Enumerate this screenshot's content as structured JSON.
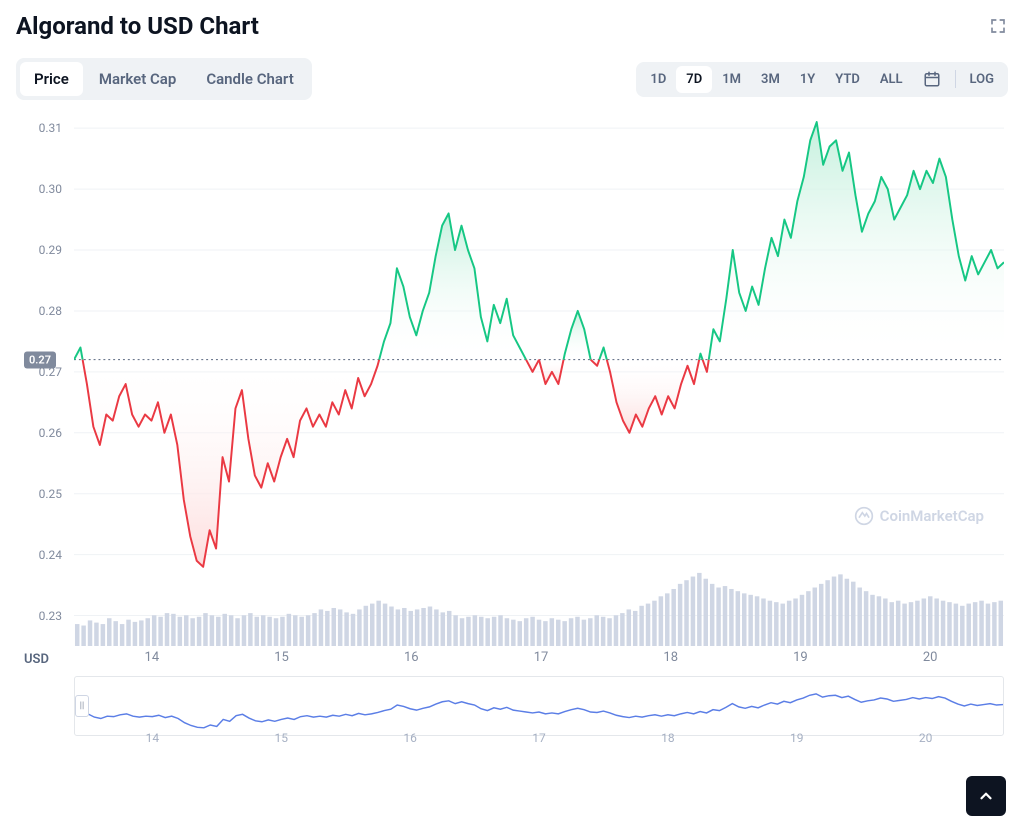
{
  "title": "Algorand to USD Chart",
  "currency_label": "USD",
  "watermark_text": "CoinMarketCap",
  "view_tabs": {
    "items": [
      "Price",
      "Market Cap",
      "Candle Chart"
    ],
    "active_index": 0
  },
  "range_tabs": {
    "items": [
      "1D",
      "7D",
      "1M",
      "3M",
      "1Y",
      "YTD",
      "ALL"
    ],
    "active_index": 1,
    "log_label": "LOG"
  },
  "chart": {
    "type": "line-area-baseline",
    "ylim": [
      0.225,
      0.312
    ],
    "yticks": [
      0.23,
      0.24,
      0.25,
      0.26,
      0.27,
      0.28,
      0.29,
      0.3,
      0.31
    ],
    "ytick_labels": [
      "0.23",
      "0.24",
      "0.25",
      "0.26",
      "0.27",
      "0.28",
      "0.29",
      "0.30",
      "0.31"
    ],
    "baseline": 0.272,
    "baseline_label": "0.27",
    "xlim": [
      13.4,
      20.6
    ],
    "xticks": [
      14,
      15,
      16,
      17,
      18,
      19,
      20
    ],
    "xtick_labels": [
      "14",
      "15",
      "16",
      "17",
      "18",
      "19",
      "20"
    ],
    "background_color": "#ffffff",
    "grid_color": "#eff2f5",
    "baseline_dot_color": "#58667e",
    "up_color": "#16c784",
    "up_fill_from": "#c4f0dd",
    "up_fill_to": "#ffffff",
    "down_color": "#ea3943",
    "down_fill_from": "#fddcdc",
    "down_fill_to": "#ffffff",
    "line_width": 2,
    "series": [
      [
        13.4,
        0.272
      ],
      [
        13.45,
        0.274
      ],
      [
        13.5,
        0.268
      ],
      [
        13.55,
        0.261
      ],
      [
        13.6,
        0.258
      ],
      [
        13.65,
        0.263
      ],
      [
        13.7,
        0.262
      ],
      [
        13.75,
        0.266
      ],
      [
        13.8,
        0.268
      ],
      [
        13.85,
        0.263
      ],
      [
        13.9,
        0.261
      ],
      [
        13.95,
        0.263
      ],
      [
        14.0,
        0.262
      ],
      [
        14.05,
        0.265
      ],
      [
        14.1,
        0.26
      ],
      [
        14.15,
        0.263
      ],
      [
        14.2,
        0.258
      ],
      [
        14.25,
        0.249
      ],
      [
        14.3,
        0.243
      ],
      [
        14.35,
        0.239
      ],
      [
        14.4,
        0.238
      ],
      [
        14.45,
        0.244
      ],
      [
        14.5,
        0.241
      ],
      [
        14.55,
        0.256
      ],
      [
        14.6,
        0.252
      ],
      [
        14.65,
        0.264
      ],
      [
        14.7,
        0.267
      ],
      [
        14.75,
        0.259
      ],
      [
        14.8,
        0.253
      ],
      [
        14.85,
        0.251
      ],
      [
        14.9,
        0.255
      ],
      [
        14.95,
        0.252
      ],
      [
        15.0,
        0.256
      ],
      [
        15.05,
        0.259
      ],
      [
        15.1,
        0.256
      ],
      [
        15.15,
        0.262
      ],
      [
        15.2,
        0.264
      ],
      [
        15.25,
        0.261
      ],
      [
        15.3,
        0.263
      ],
      [
        15.35,
        0.261
      ],
      [
        15.4,
        0.265
      ],
      [
        15.45,
        0.263
      ],
      [
        15.5,
        0.267
      ],
      [
        15.55,
        0.264
      ],
      [
        15.6,
        0.269
      ],
      [
        15.65,
        0.266
      ],
      [
        15.7,
        0.268
      ],
      [
        15.75,
        0.271
      ],
      [
        15.8,
        0.275
      ],
      [
        15.85,
        0.278
      ],
      [
        15.9,
        0.287
      ],
      [
        15.95,
        0.284
      ],
      [
        16.0,
        0.279
      ],
      [
        16.05,
        0.276
      ],
      [
        16.1,
        0.28
      ],
      [
        16.15,
        0.283
      ],
      [
        16.2,
        0.289
      ],
      [
        16.25,
        0.294
      ],
      [
        16.3,
        0.296
      ],
      [
        16.35,
        0.29
      ],
      [
        16.4,
        0.294
      ],
      [
        16.45,
        0.29
      ],
      [
        16.5,
        0.287
      ],
      [
        16.55,
        0.279
      ],
      [
        16.6,
        0.275
      ],
      [
        16.65,
        0.281
      ],
      [
        16.7,
        0.278
      ],
      [
        16.75,
        0.282
      ],
      [
        16.8,
        0.276
      ],
      [
        16.85,
        0.274
      ],
      [
        16.9,
        0.272
      ],
      [
        16.95,
        0.27
      ],
      [
        17.0,
        0.272
      ],
      [
        17.05,
        0.268
      ],
      [
        17.1,
        0.27
      ],
      [
        17.15,
        0.268
      ],
      [
        17.2,
        0.273
      ],
      [
        17.25,
        0.277
      ],
      [
        17.3,
        0.28
      ],
      [
        17.35,
        0.277
      ],
      [
        17.4,
        0.272
      ],
      [
        17.45,
        0.271
      ],
      [
        17.5,
        0.274
      ],
      [
        17.55,
        0.27
      ],
      [
        17.6,
        0.265
      ],
      [
        17.65,
        0.262
      ],
      [
        17.7,
        0.26
      ],
      [
        17.75,
        0.263
      ],
      [
        17.8,
        0.261
      ],
      [
        17.85,
        0.264
      ],
      [
        17.9,
        0.266
      ],
      [
        17.95,
        0.263
      ],
      [
        18.0,
        0.266
      ],
      [
        18.05,
        0.264
      ],
      [
        18.1,
        0.268
      ],
      [
        18.15,
        0.271
      ],
      [
        18.2,
        0.268
      ],
      [
        18.25,
        0.273
      ],
      [
        18.3,
        0.27
      ],
      [
        18.35,
        0.277
      ],
      [
        18.4,
        0.275
      ],
      [
        18.45,
        0.282
      ],
      [
        18.5,
        0.29
      ],
      [
        18.55,
        0.283
      ],
      [
        18.6,
        0.28
      ],
      [
        18.65,
        0.284
      ],
      [
        18.7,
        0.281
      ],
      [
        18.75,
        0.287
      ],
      [
        18.8,
        0.292
      ],
      [
        18.85,
        0.289
      ],
      [
        18.9,
        0.295
      ],
      [
        18.95,
        0.292
      ],
      [
        19.0,
        0.298
      ],
      [
        19.05,
        0.302
      ],
      [
        19.1,
        0.308
      ],
      [
        19.15,
        0.311
      ],
      [
        19.2,
        0.304
      ],
      [
        19.25,
        0.307
      ],
      [
        19.3,
        0.308
      ],
      [
        19.35,
        0.303
      ],
      [
        19.4,
        0.306
      ],
      [
        19.45,
        0.299
      ],
      [
        19.5,
        0.293
      ],
      [
        19.55,
        0.296
      ],
      [
        19.6,
        0.298
      ],
      [
        19.65,
        0.302
      ],
      [
        19.7,
        0.3
      ],
      [
        19.75,
        0.295
      ],
      [
        19.8,
        0.297
      ],
      [
        19.85,
        0.299
      ],
      [
        19.9,
        0.303
      ],
      [
        19.95,
        0.3
      ],
      [
        20.0,
        0.303
      ],
      [
        20.05,
        0.301
      ],
      [
        20.1,
        0.305
      ],
      [
        20.15,
        0.302
      ],
      [
        20.2,
        0.295
      ],
      [
        20.25,
        0.289
      ],
      [
        20.3,
        0.285
      ],
      [
        20.35,
        0.289
      ],
      [
        20.4,
        0.286
      ],
      [
        20.45,
        0.288
      ],
      [
        20.5,
        0.29
      ],
      [
        20.55,
        0.287
      ],
      [
        20.6,
        0.288
      ]
    ],
    "volume": {
      "color": "#cfd6e4",
      "y_base": 0.225,
      "y_max_height": 0.012,
      "data": [
        0.3,
        0.28,
        0.35,
        0.32,
        0.3,
        0.38,
        0.34,
        0.3,
        0.36,
        0.33,
        0.35,
        0.38,
        0.42,
        0.4,
        0.45,
        0.44,
        0.4,
        0.42,
        0.38,
        0.4,
        0.45,
        0.42,
        0.4,
        0.44,
        0.42,
        0.38,
        0.42,
        0.45,
        0.4,
        0.42,
        0.4,
        0.38,
        0.4,
        0.44,
        0.42,
        0.4,
        0.42,
        0.45,
        0.5,
        0.48,
        0.52,
        0.5,
        0.46,
        0.44,
        0.5,
        0.55,
        0.58,
        0.62,
        0.58,
        0.54,
        0.5,
        0.52,
        0.48,
        0.5,
        0.52,
        0.54,
        0.5,
        0.46,
        0.48,
        0.42,
        0.38,
        0.4,
        0.42,
        0.4,
        0.38,
        0.4,
        0.42,
        0.38,
        0.36,
        0.34,
        0.38,
        0.4,
        0.36,
        0.34,
        0.38,
        0.36,
        0.34,
        0.38,
        0.4,
        0.36,
        0.38,
        0.42,
        0.4,
        0.38,
        0.42,
        0.45,
        0.5,
        0.48,
        0.55,
        0.58,
        0.62,
        0.68,
        0.72,
        0.78,
        0.85,
        0.9,
        0.95,
        1.0,
        0.92,
        0.85,
        0.8,
        0.82,
        0.78,
        0.75,
        0.72,
        0.7,
        0.68,
        0.65,
        0.62,
        0.6,
        0.58,
        0.62,
        0.65,
        0.7,
        0.75,
        0.8,
        0.85,
        0.9,
        0.95,
        0.98,
        0.92,
        0.88,
        0.8,
        0.75,
        0.7,
        0.68,
        0.65,
        0.6,
        0.62,
        0.58,
        0.6,
        0.62,
        0.65,
        0.68,
        0.65,
        0.62,
        0.6,
        0.58,
        0.55,
        0.58,
        0.6,
        0.62,
        0.58,
        0.6,
        0.62
      ]
    }
  },
  "overview": {
    "line_color": "#5b7ee6",
    "label_color": "#a6b0c3",
    "xticks": [
      14,
      15,
      16,
      17,
      18,
      19,
      20
    ],
    "xtick_labels": [
      "14",
      "15",
      "16",
      "17",
      "18",
      "19",
      "20"
    ]
  }
}
